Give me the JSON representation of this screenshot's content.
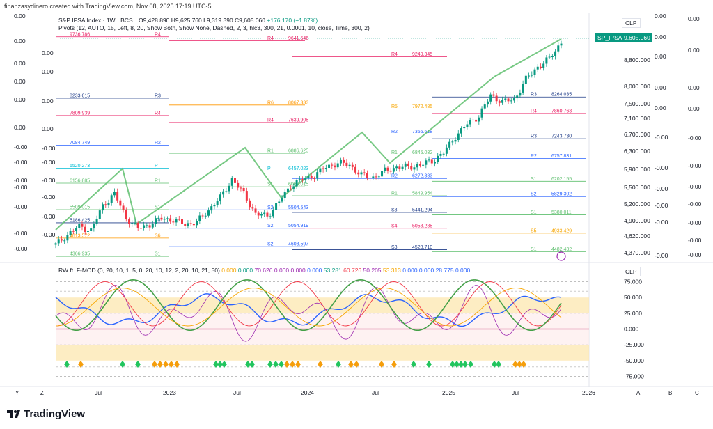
{
  "header": {
    "credit": "finanzasydinero created with TradingView.com, Nov 08, 2025 17:19 UTC-5"
  },
  "legend": {
    "symbol_line": "S&P IPSA Index · 1W · BCS",
    "ohlc": {
      "o": "O9,428.890",
      "h": "H9,625.760",
      "l": "L9,319.390",
      "c": "C9,605.060",
      "chg": "+176.170 (+1.87%)"
    },
    "pivots_line": "Pivots (12, AUTO, 15, Left, 8, 20, Show Both, Show None, Dashed, 2, 3, hlc3, 300, 21, 0.0001, 10, close, Time, 300, 2)",
    "osc_label": "RW ft. F-MOD (0, 20, 10, 1, 5, 0, 20, 10, 12, 2, 20, 10, 21, 50)",
    "osc_values": [
      {
        "v": "0.000",
        "c": "#f7a600"
      },
      {
        "v": "0.000",
        "c": "#089981"
      },
      {
        "v": "70.626",
        "c": "#9c27b0"
      },
      {
        "v": "0.000",
        "c": "#9c27b0"
      },
      {
        "v": "0.000",
        "c": "#9c27b0"
      },
      {
        "v": "0.000",
        "c": "#2962ff"
      },
      {
        "v": "53.281",
        "c": "#089981"
      },
      {
        "v": "60.726",
        "c": "#f23645"
      },
      {
        "v": "50.205",
        "c": "#9c27b0"
      },
      {
        "v": "53.313",
        "c": "#f7a600"
      },
      {
        "v": "0.000",
        "c": "#2962ff"
      },
      {
        "v": "0.000",
        "c": "#2962ff"
      },
      {
        "v": "28.775",
        "c": "#2962ff"
      },
      {
        "v": "0.000",
        "c": "#2962ff"
      }
    ]
  },
  "price_scale": {
    "currency": "CLP",
    "symbol_tag": "SP_IPSA",
    "last_price": "9,605.060",
    "ticks": [
      "8,800.000",
      "8,000.000",
      "7,500.000",
      "7,100.000",
      "6,700.000",
      "6,300.000",
      "5,900.000",
      "5,500.000",
      "5,200.000",
      "4,900.000",
      "4,620.000",
      "4,370.000"
    ]
  },
  "osc_scale": {
    "currency": "CLP",
    "ticks": [
      "75.000",
      "50.000",
      "25.000",
      "0.000",
      "-25.000",
      "-50.000",
      "-75.000"
    ]
  },
  "extra_scales": {
    "col_left": [
      "0.00",
      "0.00",
      "0.00",
      "0.00",
      "0.00",
      "0.00",
      "-0.00",
      "-0.00",
      "-0.00",
      "-0.00",
      "-0.00",
      "-0.00",
      "-0.00"
    ],
    "col_left2": [
      "0.00",
      "0.00",
      "0.00",
      "0.00",
      "-0.00",
      "-0.00",
      "-0.00",
      "-0.00",
      "-0.00",
      "-0.00"
    ],
    "col_right1": [
      "0.00",
      "0.00",
      "0.00",
      "0.00",
      "0.00",
      "-0.00",
      "-0.00",
      "-0.00",
      "-0.00",
      "-0.00",
      "-0.00"
    ],
    "col_right2": [
      "0.00",
      "0.00",
      "0.00",
      "0.00",
      "-0.00",
      "-0.00",
      "-0.00",
      "-0.00",
      "-0.00",
      "-0.00",
      "-0.00"
    ]
  },
  "time_axis": {
    "labels": [
      "Jul",
      "2023",
      "Jul",
      "2024",
      "Jul",
      "2025",
      "Jul",
      "2026"
    ],
    "corner_left": [
      "Y",
      "Z"
    ],
    "corner_right": [
      "A",
      "B",
      "C"
    ]
  },
  "chart_data": {
    "type": "line",
    "title": "S&P IPSA Index · 1W · BCS",
    "x": [
      "2022-04",
      "2022-05",
      "2022-06",
      "2022-07",
      "2022-08",
      "2022-09",
      "2022-10",
      "2022-11",
      "2022-12",
      "2023-01",
      "2023-02",
      "2023-03",
      "2023-04",
      "2023-05",
      "2023-06",
      "2023-07",
      "2023-08",
      "2023-09",
      "2023-10",
      "2023-11",
      "2023-12",
      "2024-01",
      "2024-02",
      "2024-03",
      "2024-04",
      "2024-05",
      "2024-06",
      "2024-07",
      "2024-08",
      "2024-09",
      "2024-10",
      "2024-11",
      "2024-12",
      "2025-01",
      "2025-02",
      "2025-03",
      "2025-04",
      "2025-05",
      "2025-06",
      "2025-07",
      "2025-08",
      "2025-09",
      "2025-10",
      "2025-11"
    ],
    "series": [
      {
        "values": [
          4650,
          4900,
          5100,
          5000,
          5600,
          5900,
          5300,
          5050,
          5150,
          5300,
          5250,
          5150,
          5200,
          5500,
          5800,
          6250,
          5900,
          5400,
          5350,
          5700,
          6100,
          6250,
          6350,
          6550,
          6650,
          6600,
          6350,
          6300,
          6450,
          6550,
          6550,
          6600,
          6700,
          6900,
          7300,
          7600,
          7800,
          8300,
          8150,
          8200,
          8700,
          9000,
          9200,
          9605
        ]
      }
    ],
    "ylim": [
      4300,
      9750
    ],
    "pivots": [
      {
        "label": "R4",
        "value": "9736.786"
      },
      {
        "label": "R4",
        "value": "9641.546"
      },
      {
        "label": "R4",
        "value": "9249.345"
      },
      {
        "label": "R3",
        "value": "8264.035"
      },
      {
        "label": "R3",
        "value": "8233.615"
      },
      {
        "label": "R6",
        "value": "8067.333"
      },
      {
        "label": "R5",
        "value": "7972.485"
      },
      {
        "label": "R4",
        "value": "7860.763"
      },
      {
        "label": "R4",
        "value": "7809.939"
      },
      {
        "label": "R4",
        "value": "7639.905"
      },
      {
        "label": "R2",
        "value": "7356.618"
      },
      {
        "label": "R3",
        "value": "7243.730"
      },
      {
        "label": "R2",
        "value": "7084.749"
      },
      {
        "label": "R1",
        "value": "6886.625"
      },
      {
        "label": "R1",
        "value": "6845.032"
      },
      {
        "label": "R2",
        "value": "6757.831"
      },
      {
        "label": "P",
        "value": "6520.273"
      },
      {
        "label": "P",
        "value": "6457.023"
      },
      {
        "label": "R2",
        "value": "6272.383"
      },
      {
        "label": "S1",
        "value": "6202.155"
      },
      {
        "label": "R1",
        "value": "6156.885"
      },
      {
        "label": "S1",
        "value": "6069.015"
      },
      {
        "label": "R1",
        "value": "5849.954"
      },
      {
        "label": "S2",
        "value": "5829.302"
      },
      {
        "label": "S1",
        "value": "5509.015"
      },
      {
        "label": "S2",
        "value": "5504.543"
      },
      {
        "label": "S3",
        "value": "5441.294"
      },
      {
        "label": "S1",
        "value": "5380.011"
      },
      {
        "label": "S3",
        "value": "5186.425"
      },
      {
        "label": "S2",
        "value": "5054.919"
      },
      {
        "label": "S4",
        "value": "5053.285"
      },
      {
        "label": "S5",
        "value": "4933.429"
      },
      {
        "label": "S6",
        "value": "4813.572"
      },
      {
        "label": "S2",
        "value": "4603.597"
      },
      {
        "label": "S3",
        "value": "4528.710"
      },
      {
        "label": "S1",
        "value": "4482.432"
      },
      {
        "label": "S1",
        "value": "4366.935"
      }
    ]
  },
  "colors": {
    "up": "#089981",
    "down": "#f23645",
    "channel": "#5fbf6f",
    "last_price_bg": "#089981",
    "blue_line": "#2962ff",
    "purple_line": "#9c27b0",
    "diamond_green": "#22c55e",
    "diamond_orange": "#f59e0b"
  },
  "branding": {
    "name": "TradingView"
  }
}
